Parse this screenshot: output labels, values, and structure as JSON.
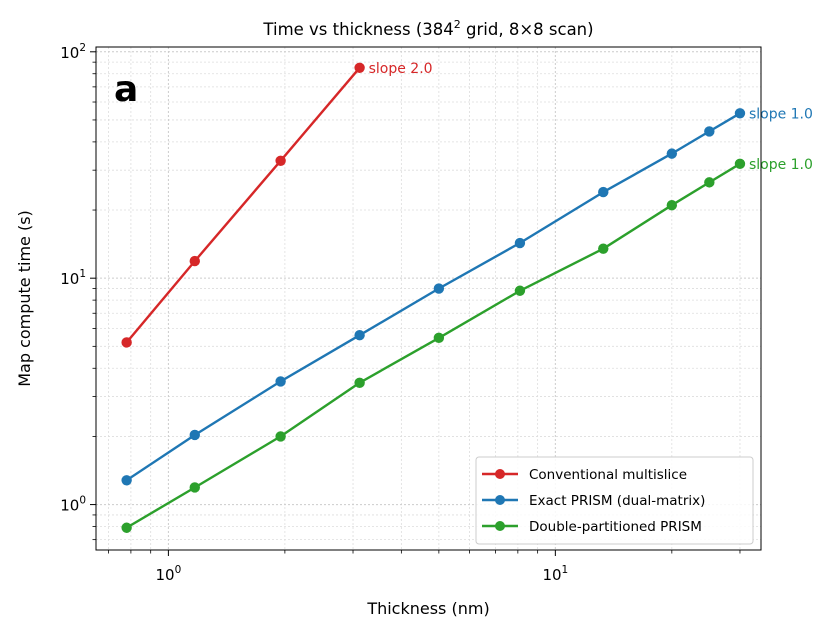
{
  "chart_data": {
    "type": "line",
    "title": "Time vs thickness (384",
    "title_sup": "2",
    "title_rest": " grid, 8×8 scan)",
    "panel_label": "a",
    "xlabel": "Thickness (nm)",
    "ylabel": "Map compute time (s)",
    "xscale": "log",
    "yscale": "log",
    "xlim": [
      0.65,
      34
    ],
    "ylim": [
      0.63,
      105
    ],
    "x_ticks": [
      {
        "value": 1,
        "base": "10",
        "exp": "0"
      },
      {
        "value": 10,
        "base": "10",
        "exp": "1"
      }
    ],
    "y_ticks": [
      {
        "value": 1,
        "base": "10",
        "exp": "0"
      },
      {
        "value": 10,
        "base": "10",
        "exp": "1"
      },
      {
        "value": 100,
        "base": "10",
        "exp": "2"
      }
    ],
    "grid": true,
    "legend_position": "lower-right",
    "series": [
      {
        "name": "Conventional multislice",
        "color": "#d62728",
        "x": [
          0.78,
          1.17,
          1.95,
          3.12
        ],
        "y": [
          5.2,
          11.9,
          33.0,
          85.0
        ],
        "annotation": "slope 2.0"
      },
      {
        "name": "Exact PRISM (dual-matrix)",
        "color": "#1f77b4",
        "x": [
          0.78,
          1.17,
          1.95,
          3.12,
          5.0,
          8.1,
          13.3,
          20.0,
          25.0,
          30.0
        ],
        "y": [
          1.28,
          2.03,
          3.5,
          5.6,
          9.0,
          14.3,
          24.0,
          35.5,
          44.5,
          53.5
        ],
        "annotation": "slope 1.0"
      },
      {
        "name": "Double-partitioned PRISM",
        "color": "#2ca02c",
        "x": [
          0.78,
          1.17,
          1.95,
          3.12,
          5.0,
          8.1,
          13.3,
          20.0,
          25.0,
          30.0
        ],
        "y": [
          0.79,
          1.19,
          2.0,
          3.45,
          5.45,
          8.8,
          13.5,
          21.0,
          26.5,
          32.0
        ],
        "annotation": "slope 1.0"
      }
    ]
  }
}
